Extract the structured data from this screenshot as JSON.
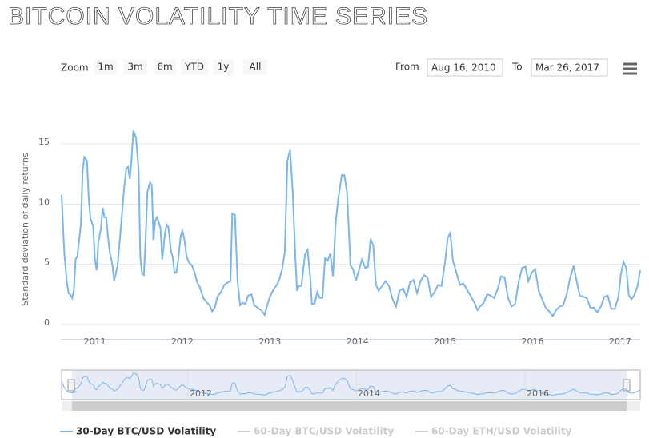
{
  "toolbar": {
    "zoom_label": "Zoom",
    "buttons": [
      "1m",
      "3m",
      "6m",
      "YTD",
      "1y",
      "All"
    ],
    "from_label": "From",
    "from": "Aug 16, 2010",
    "to_label": "To",
    "to": "Mar 26, 2017"
  },
  "legend_hidden": [
    "60-Day BTC/USD Volatility",
    "60-Day ETH/USD Volatility"
  ],
  "navigator_ticks": [
    "2012",
    "2014",
    "2016"
  ],
  "chart_data": {
    "type": "line",
    "title": "BITCOIN VOLATILITY TIME SERIES",
    "y_label": "Standard deviation of daily returns",
    "xlim": [
      2010.62,
      2017.23
    ],
    "xticks": [
      2011,
      2012,
      2013,
      2014,
      2015,
      2016,
      2017
    ],
    "ylim": [
      -1.2,
      17
    ],
    "yticks": [
      0,
      5,
      10,
      15
    ],
    "grid": true,
    "x": [
      2010.62,
      2010.65,
      2010.68,
      2010.7,
      2010.72,
      2010.74,
      2010.76,
      2010.78,
      2010.8,
      2010.84,
      2010.86,
      2010.88,
      2010.91,
      2010.93,
      2010.95,
      2010.98,
      2011.0,
      2011.02,
      2011.04,
      2011.07,
      2011.09,
      2011.11,
      2011.13,
      2011.15,
      2011.17,
      2011.2,
      2011.22,
      2011.26,
      2011.3,
      2011.33,
      2011.36,
      2011.38,
      2011.4,
      2011.42,
      2011.44,
      2011.47,
      2011.5,
      2011.52,
      2011.54,
      2011.56,
      2011.58,
      2011.6,
      2011.63,
      2011.65,
      2011.67,
      2011.69,
      2011.71,
      2011.73,
      2011.75,
      2011.77,
      2011.8,
      2011.82,
      2011.84,
      2011.87,
      2011.89,
      2011.91,
      2011.93,
      2011.95,
      2011.98,
      2012.0,
      2012.02,
      2012.05,
      2012.08,
      2012.11,
      2012.14,
      2012.17,
      2012.2,
      2012.24,
      2012.27,
      2012.31,
      2012.34,
      2012.37,
      2012.4,
      2012.44,
      2012.48,
      2012.52,
      2012.55,
      2012.57,
      2012.6,
      2012.63,
      2012.66,
      2012.69,
      2012.72,
      2012.75,
      2012.79,
      2012.82,
      2012.86,
      2012.9,
      2012.94,
      2012.97,
      2013.0,
      2013.04,
      2013.08,
      2013.11,
      2013.14,
      2013.17,
      2013.2,
      2013.23,
      2013.26,
      2013.29,
      2013.31,
      2013.33,
      2013.36,
      2013.4,
      2013.43,
      2013.46,
      2013.48,
      2013.51,
      2013.54,
      2013.57,
      2013.6,
      2013.63,
      2013.66,
      2013.69,
      2013.72,
      2013.75,
      2013.78,
      2013.82,
      2013.85,
      2013.88,
      2013.92,
      2013.95,
      2013.98,
      2014.02,
      2014.05,
      2014.09,
      2014.12,
      2014.15,
      2014.18,
      2014.21,
      2014.24,
      2014.28,
      2014.32,
      2014.36,
      2014.4,
      2014.44,
      2014.48,
      2014.52,
      2014.56,
      2014.6,
      2014.64,
      2014.68,
      2014.72,
      2014.76,
      2014.8,
      2014.84,
      2014.88,
      2014.92,
      2014.96,
      2015.0,
      2015.03,
      2015.06,
      2015.09,
      2015.13,
      2015.17,
      2015.21,
      2015.25,
      2015.29,
      2015.33,
      2015.37,
      2015.4,
      2015.44,
      2015.48,
      2015.52,
      2015.56,
      2015.6,
      2015.64,
      2015.68,
      2015.72,
      2015.76,
      2015.8,
      2015.84,
      2015.88,
      2015.92,
      2015.95,
      2015.99,
      2016.03,
      2016.07,
      2016.11,
      2016.15,
      2016.19,
      2016.23,
      2016.27,
      2016.31,
      2016.35,
      2016.39,
      2016.43,
      2016.47,
      2016.5,
      2016.54,
      2016.58,
      2016.62,
      2016.66,
      2016.7,
      2016.74,
      2016.78,
      2016.82,
      2016.86,
      2016.9,
      2016.94,
      2016.98,
      2017.01,
      2017.04,
      2017.07,
      2017.1,
      2017.13,
      2017.16,
      2017.2,
      2017.23
    ],
    "series": [
      {
        "name": "30-Day BTC/USD Volatility",
        "color": "#7cb5ec",
        "values": [
          10.8,
          6,
          3.5,
          2.6,
          2.5,
          2.2,
          2.8,
          5.4,
          5.7,
          8.3,
          12.8,
          13.9,
          13.6,
          10.5,
          8.8,
          8.2,
          5.4,
          4.5,
          6.8,
          8,
          9.7,
          8.9,
          8.9,
          7.3,
          6,
          5,
          3.6,
          4.9,
          8.3,
          11,
          13,
          13.1,
          12.1,
          13.8,
          16.1,
          15.5,
          12.8,
          5.6,
          4.2,
          4.1,
          7,
          11,
          11.8,
          11.6,
          7,
          8.6,
          8.9,
          8.5,
          8,
          5.4,
          7.5,
          8.3,
          8.1,
          6.1,
          5.6,
          4.3,
          4.3,
          5.2,
          7.3,
          7.8,
          7.2,
          5.6,
          5.1,
          4.9,
          4.3,
          3.5,
          3.1,
          2.2,
          1.9,
          1.6,
          1.1,
          1.4,
          2.3,
          2.7,
          3.3,
          3.5,
          3.6,
          9.2,
          9.1,
          3.6,
          1.6,
          1.8,
          1.7,
          2.4,
          2.5,
          1.6,
          1.4,
          1.2,
          0.8,
          1.6,
          2.3,
          2.9,
          3.3,
          3.8,
          4.6,
          6,
          13.6,
          14.5,
          11,
          5.7,
          2.8,
          3.2,
          3.2,
          5.8,
          6.2,
          4,
          1.7,
          1.7,
          2.7,
          2.2,
          2.2,
          5.5,
          5.3,
          5.9,
          4,
          8.4,
          10.4,
          12.4,
          12.4,
          11,
          4.9,
          4.6,
          3.6,
          4.6,
          5.4,
          4.7,
          4.8,
          7.1,
          6.6,
          3.3,
          2.8,
          3.2,
          3.6,
          3.2,
          2.1,
          1.5,
          2.8,
          3,
          2.3,
          3.5,
          3.7,
          2.6,
          3.6,
          4.1,
          3.9,
          2.3,
          2.7,
          3.3,
          3.2,
          5.2,
          7.2,
          7.6,
          5.3,
          4.3,
          3.3,
          3.4,
          2.9,
          2.4,
          1.9,
          1.2,
          1.5,
          1.8,
          2.5,
          2.4,
          2.2,
          2.9,
          4,
          3.9,
          2.2,
          1.5,
          1.7,
          3.5,
          4.7,
          4.8,
          3.6,
          4.3,
          4.6,
          2.8,
          2.1,
          1.4,
          1.1,
          0.7,
          1.2,
          1.5,
          1.6,
          2.5,
          3.9,
          4.9,
          3.7,
          2.4,
          2.3,
          2.2,
          1.4,
          1.4,
          1,
          1.5,
          2.3,
          2.4,
          1.3,
          1.3,
          2.3,
          4.2,
          5.2,
          4.7,
          2.4,
          2.1,
          2.4,
          3.2,
          4.5
        ]
      }
    ]
  }
}
